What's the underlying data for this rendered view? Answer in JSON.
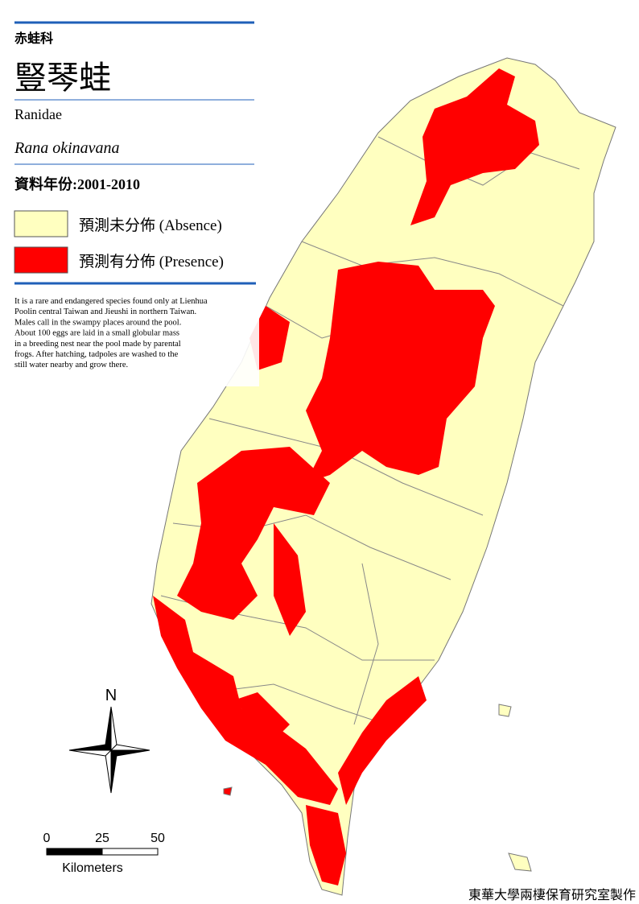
{
  "header": {
    "family_zh": "赤蛙科",
    "name_zh": "豎琴蛙",
    "family_en": "Ranidae",
    "species": "Rana okinavana",
    "data_years": "資料年份:2001-2010"
  },
  "legend": [
    {
      "label": "預測未分佈 (Absence)",
      "color": "#ffffc0"
    },
    {
      "label": "預測有分佈 (Presence)",
      "color": "#ff0000"
    }
  ],
  "description": [
    "It is a rare and endangered species found only at Lienhua",
    "Poolin central Taiwan and Jieushi in northern Taiwan.",
    "Males call in the swampy places around the pool.",
    "About 100 eggs are laid in a small globular mass",
    "in a breeding nest near the pool made by parental",
    "frogs. After hatching, tadpoles are washed to the",
    "still water nearby and grow there."
  ],
  "north": "N",
  "scale_bar": {
    "ticks": [
      0,
      25,
      50
    ],
    "unit": "Kilometers"
  },
  "credit": "東華大學兩棲保育研究室製作"
}
